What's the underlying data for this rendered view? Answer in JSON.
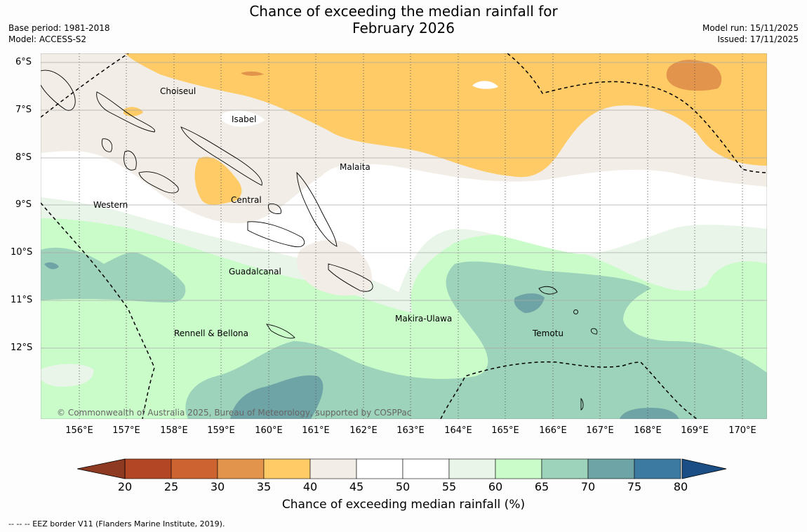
{
  "title_line1": "Chance of exceeding the median rainfall for",
  "title_line2": "February 2026",
  "base_period": "Base period: 1981-2018",
  "model": "Model: ACCESS-S2",
  "model_run": "Model run: 15/11/2025",
  "issued": "Issued: 17/11/2025",
  "lat_labels": [
    "6°S",
    "7°S",
    "8°S",
    "9°S",
    "10°S",
    "11°S",
    "12°S"
  ],
  "lon_labels": [
    "156°E",
    "157°E",
    "158°E",
    "159°E",
    "160°E",
    "161°E",
    "162°E",
    "163°E",
    "164°E",
    "165°E",
    "166°E",
    "167°E",
    "168°E",
    "169°E",
    "170°E"
  ],
  "places": [
    {
      "name": "Choiseul"
    },
    {
      "name": "Isabel"
    },
    {
      "name": "Malaita"
    },
    {
      "name": "Central"
    },
    {
      "name": "Western"
    },
    {
      "name": "Guadalcanal"
    },
    {
      "name": "Makira-Ulawa"
    },
    {
      "name": "Rennell & Bellona"
    },
    {
      "name": "Temotu"
    }
  ],
  "copyright": "© Commonwealth of Australia 2025, Bureau of Meteorology, supported by COSPPac",
  "colorbar": {
    "title": "Chance of exceeding median rainfall (%)",
    "labels": [
      "20",
      "25",
      "30",
      "35",
      "40",
      "45",
      "50",
      "55",
      "60",
      "65",
      "70",
      "75",
      "80"
    ],
    "colors": [
      "#b34725",
      "#cc6330",
      "#e3944c",
      "#fecb66",
      "#f2ede6",
      "#ffffff",
      "#ffffff",
      "#eaf5e9",
      "#c9fcc9",
      "#9dd2bb",
      "#6fa4a6",
      "#3d7aa2"
    ],
    "under_color": "#8e3a22",
    "over_color": "#1a4e85"
  },
  "legend_note": "-- -- -- EEZ border V11 (Flanders Marine Institute, 2019)."
}
